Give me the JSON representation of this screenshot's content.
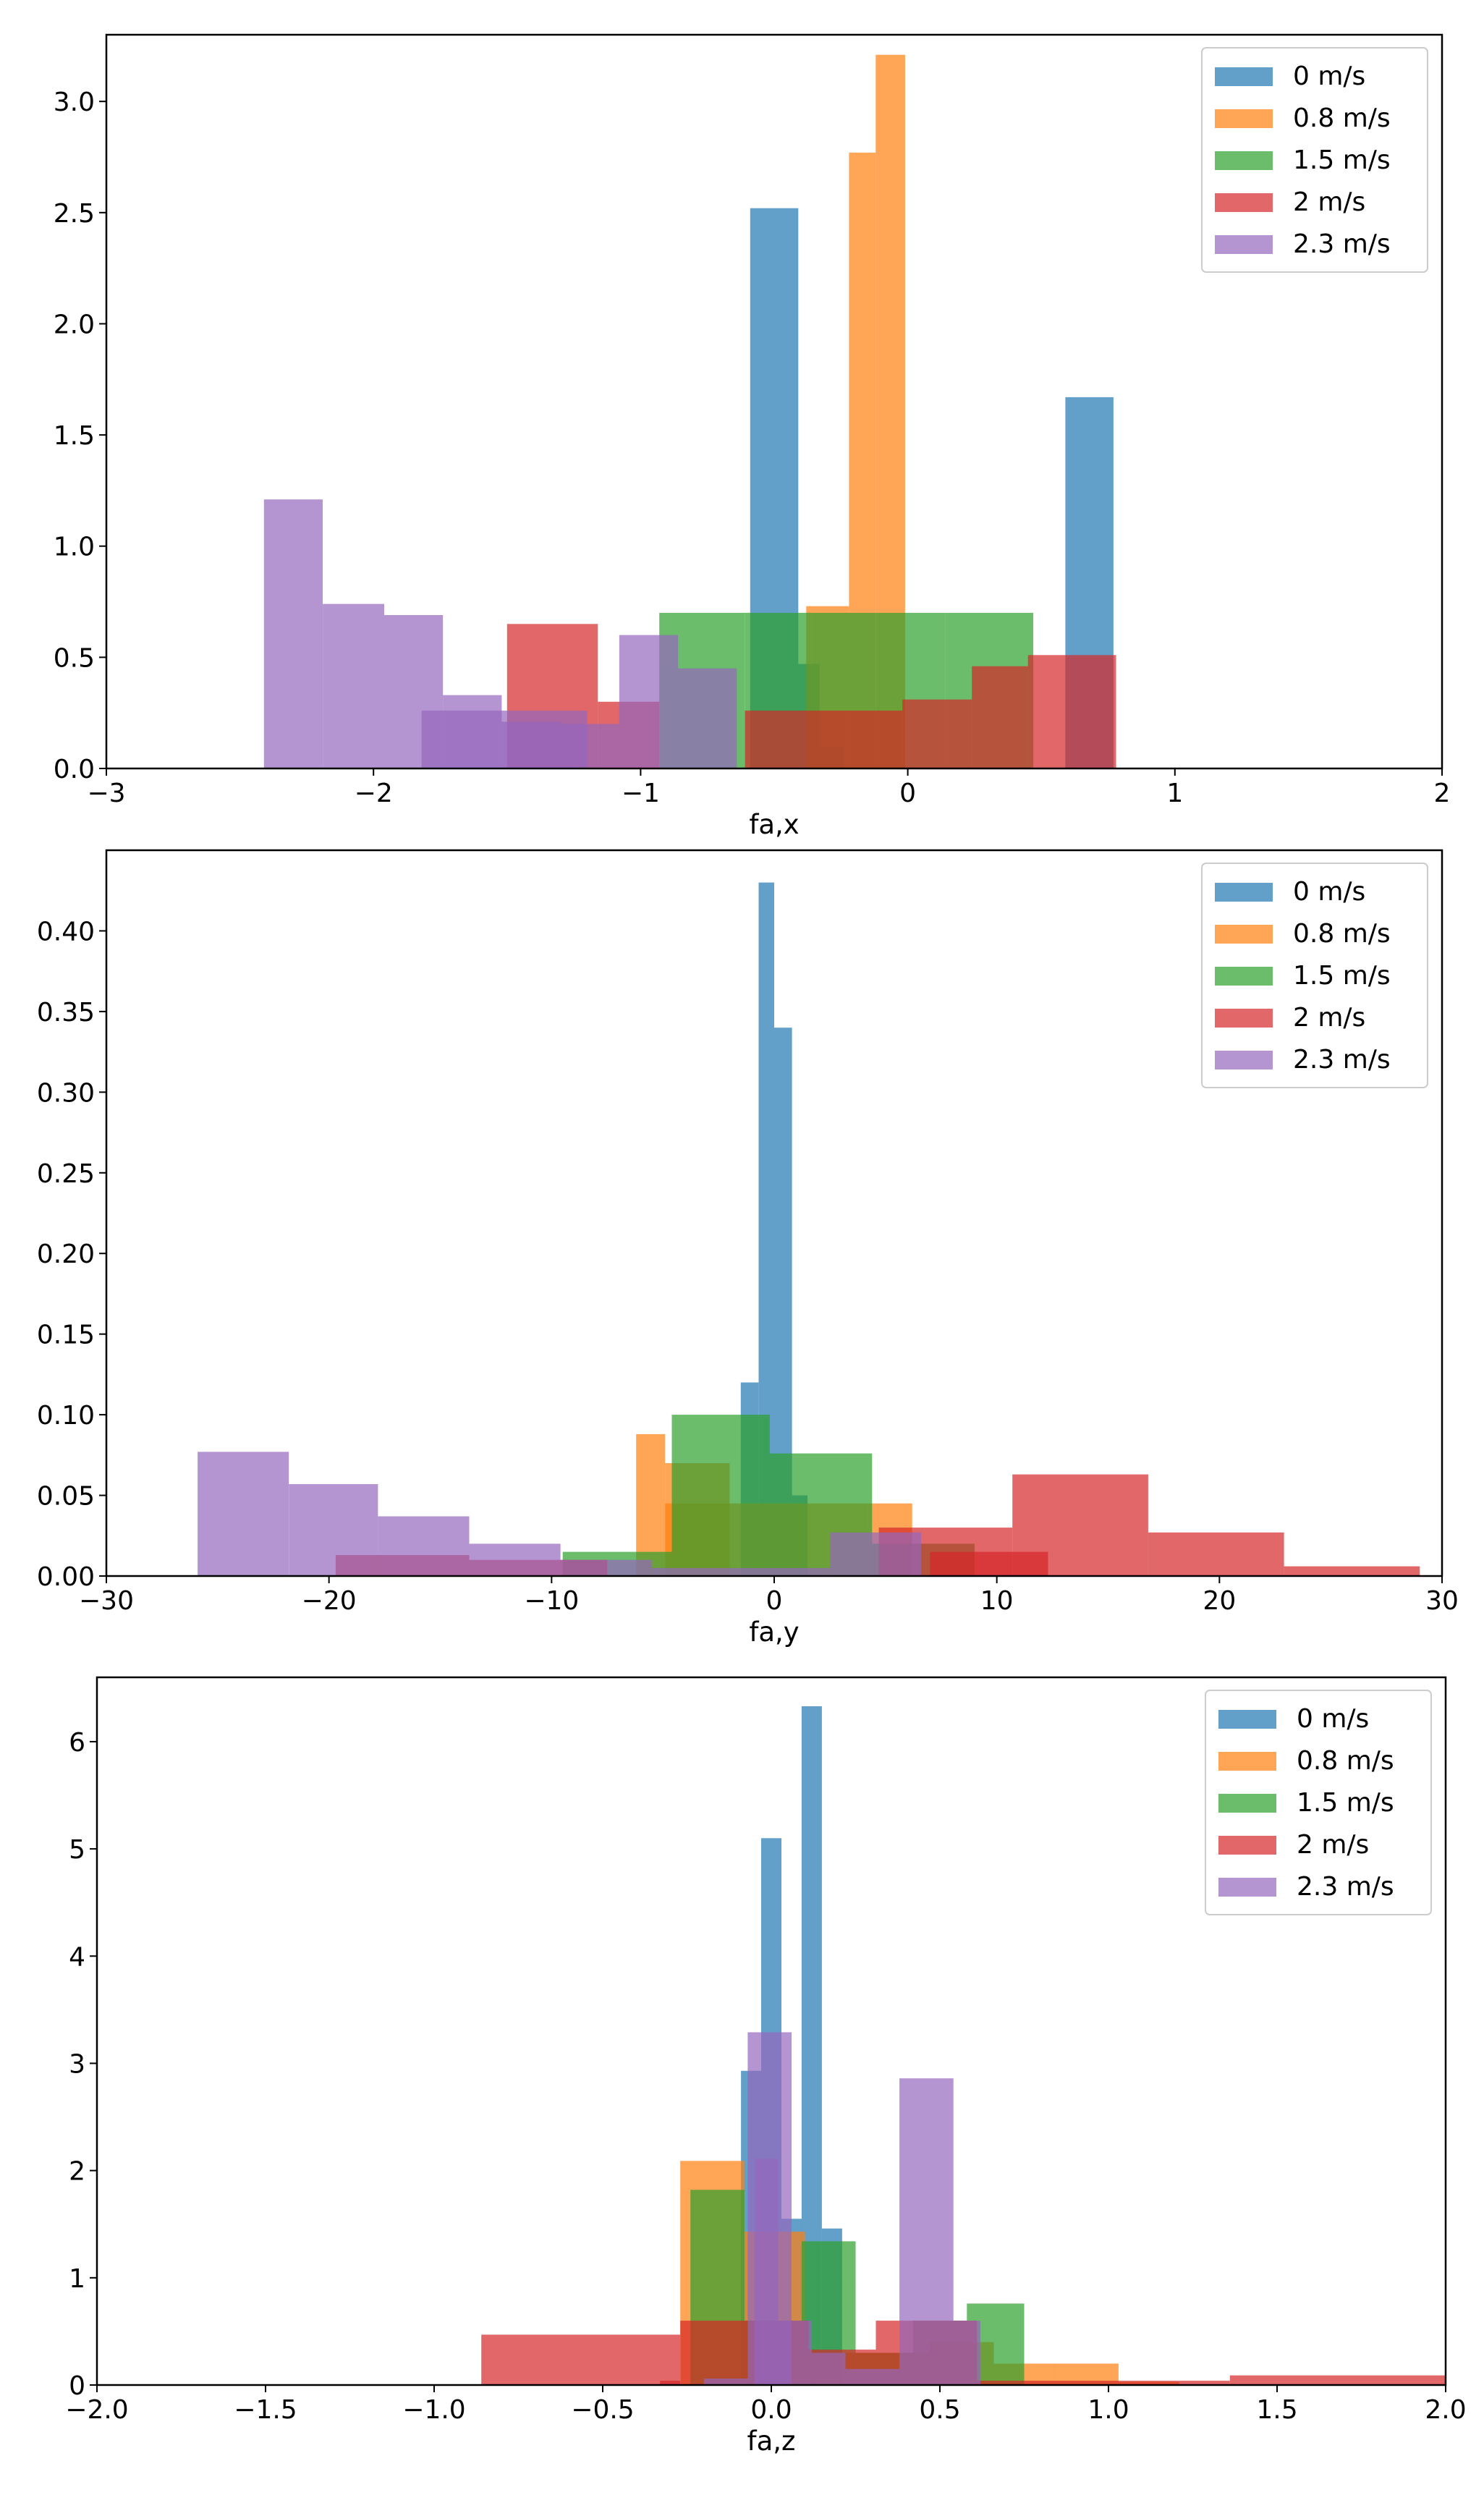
{
  "colors": {
    "series": [
      "#1f77b4",
      "#ff7f0e",
      "#2ca02c",
      "#d62728",
      "#9467bd"
    ]
  },
  "chart_data": [
    {
      "type": "bar",
      "subtype": "histogram",
      "title": "",
      "xlabel": "fa,x",
      "ylabel": "",
      "xlim": [
        -3,
        2
      ],
      "ylim": [
        0,
        3.3
      ],
      "xticks": [
        -3,
        -2,
        -1,
        0,
        1,
        2
      ],
      "xtick_labels": [
        "−3",
        "−2",
        "−1",
        "0",
        "1",
        "2"
      ],
      "yticks": [
        0,
        0.5,
        1.0,
        1.5,
        2.0,
        2.5,
        3.0
      ],
      "ytick_labels": [
        "0.0",
        "0.5",
        "1.0",
        "1.5",
        "2.0",
        "2.5",
        "3.0"
      ],
      "legend": [
        "0 m/s",
        "0.8 m/s",
        "1.5 m/s",
        "2 m/s",
        "2.3 m/s"
      ],
      "legend_position": "top-right",
      "series": [
        {
          "name": "0 m/s",
          "bins": [
            [
              -0.59,
              -0.41,
              2.52
            ],
            [
              -0.41,
              -0.33,
              0.47
            ],
            [
              -0.33,
              -0.24,
              0.1
            ],
            [
              0.59,
              0.77,
              1.67
            ]
          ]
        },
        {
          "name": "0.8 m/s",
          "bins": [
            [
              -0.38,
              -0.22,
              0.73
            ],
            [
              -0.22,
              -0.12,
              2.77
            ],
            [
              -0.12,
              -0.01,
              3.21
            ]
          ]
        },
        {
          "name": "1.5 m/s",
          "bins": [
            [
              -0.93,
              -0.61,
              0.7
            ],
            [
              -0.61,
              -0.36,
              0.7
            ],
            [
              -0.36,
              -0.12,
              0.7
            ],
            [
              -0.12,
              0.14,
              0.7
            ],
            [
              0.14,
              0.47,
              0.7
            ]
          ]
        },
        {
          "name": "2 m/s",
          "bins": [
            [
              -0.61,
              -0.29,
              0.26
            ],
            [
              -0.29,
              -0.02,
              0.26
            ],
            [
              -0.02,
              0.24,
              0.31
            ],
            [
              0.24,
              0.45,
              0.46
            ],
            [
              0.45,
              0.78,
              0.51
            ],
            [
              -1.5,
              -1.16,
              0.65
            ],
            [
              -1.16,
              -0.93,
              0.3
            ]
          ]
        },
        {
          "name": "2.3 m/s",
          "bins": [
            [
              -2.41,
              -2.19,
              1.21
            ],
            [
              -2.19,
              -1.96,
              0.74
            ],
            [
              -1.96,
              -1.74,
              0.69
            ],
            [
              -1.74,
              -1.52,
              0.33
            ],
            [
              -1.52,
              -1.3,
              0.21
            ],
            [
              -1.3,
              -1.08,
              0.2
            ],
            [
              -1.08,
              -0.86,
              0.6
            ],
            [
              -0.86,
              -0.64,
              0.45
            ],
            [
              -1.82,
              -1.2,
              0.26
            ]
          ]
        }
      ]
    },
    {
      "type": "bar",
      "subtype": "histogram",
      "title": "",
      "xlabel": "fa,y",
      "ylabel": "",
      "xlim": [
        -30,
        30
      ],
      "ylim": [
        0,
        0.45
      ],
      "xticks": [
        -30,
        -20,
        -10,
        0,
        10,
        20,
        30
      ],
      "xtick_labels": [
        "−30",
        "−20",
        "−10",
        "0",
        "10",
        "20",
        "30"
      ],
      "yticks": [
        0,
        0.05,
        0.1,
        0.15,
        0.2,
        0.25,
        0.3,
        0.35,
        0.4
      ],
      "ytick_labels": [
        "0.00",
        "0.05",
        "0.10",
        "0.15",
        "0.20",
        "0.25",
        "0.30",
        "0.35",
        "0.40"
      ],
      "legend": [
        "0 m/s",
        "0.8 m/s",
        "1.5 m/s",
        "2 m/s",
        "2.3 m/s"
      ],
      "legend_position": "top-right",
      "series": [
        {
          "name": "0 m/s",
          "bins": [
            [
              -1.5,
              -0.7,
              0.12
            ],
            [
              -0.7,
              0.0,
              0.43
            ],
            [
              0.0,
              0.8,
              0.34
            ],
            [
              0.8,
              1.5,
              0.05
            ]
          ]
        },
        {
          "name": "0.8 m/s",
          "bins": [
            [
              -6.2,
              -4.9,
              0.088
            ],
            [
              -4.9,
              4.2,
              0.045
            ],
            [
              4.2,
              6.2,
              0.045
            ],
            [
              -4.9,
              -2.0,
              0.07
            ]
          ]
        },
        {
          "name": "1.5 m/s",
          "bins": [
            [
              -9.5,
              -4.6,
              0.015
            ],
            [
              -4.6,
              -0.2,
              0.1
            ],
            [
              -0.2,
              4.4,
              0.076
            ],
            [
              4.4,
              9.0,
              0.02
            ]
          ]
        },
        {
          "name": "2 m/s",
          "bins": [
            [
              -19.7,
              -13.7,
              0.013
            ],
            [
              -13.7,
              -7.5,
              0.01
            ],
            [
              4.7,
              10.7,
              0.03
            ],
            [
              10.7,
              16.8,
              0.063
            ],
            [
              16.8,
              22.9,
              0.027
            ],
            [
              22.9,
              29.0,
              0.006
            ],
            [
              7.0,
              12.3,
              0.015
            ]
          ]
        },
        {
          "name": "2.3 m/s",
          "bins": [
            [
              -25.9,
              -21.8,
              0.077
            ],
            [
              -21.8,
              -17.8,
              0.057
            ],
            [
              -17.8,
              -13.7,
              0.037
            ],
            [
              -13.7,
              -9.6,
              0.02
            ],
            [
              -9.6,
              -5.5,
              0.01
            ],
            [
              -5.5,
              2.5,
              0.005
            ],
            [
              2.5,
              6.6,
              0.027
            ]
          ]
        }
      ]
    },
    {
      "type": "bar",
      "subtype": "histogram",
      "title": "",
      "xlabel": "fa,z",
      "ylabel": "",
      "xlim": [
        -2.0,
        2.0
      ],
      "ylim": [
        0,
        6.6
      ],
      "xticks": [
        -2.0,
        -1.5,
        -1.0,
        -0.5,
        0.0,
        0.5,
        1.0,
        1.5,
        2.0
      ],
      "xtick_labels": [
        "−2.0",
        "−1.5",
        "−1.0",
        "−0.5",
        "0.0",
        "0.5",
        "1.0",
        "1.5",
        "2.0"
      ],
      "yticks": [
        0,
        1,
        2,
        3,
        4,
        5,
        6
      ],
      "ytick_labels": [
        "0",
        "1",
        "2",
        "3",
        "4",
        "5",
        "6"
      ],
      "legend": [
        "0 m/s",
        "0.8 m/s",
        "1.5 m/s",
        "2 m/s",
        "2.3 m/s"
      ],
      "legend_position": "top-right",
      "series": [
        {
          "name": "0 m/s",
          "bins": [
            [
              -0.09,
              -0.03,
              2.93
            ],
            [
              -0.03,
              0.03,
              5.1
            ],
            [
              0.03,
              0.09,
              1.55
            ],
            [
              0.09,
              0.15,
              6.33
            ],
            [
              0.15,
              0.21,
              1.46
            ]
          ]
        },
        {
          "name": "0.8 m/s",
          "bins": [
            [
              -0.27,
              -0.08,
              2.09
            ],
            [
              -0.08,
              0.1,
              1.43
            ],
            [
              0.1,
              0.28,
              0.3
            ],
            [
              0.28,
              0.47,
              0.3
            ],
            [
              0.47,
              0.66,
              0.4
            ],
            [
              0.66,
              0.84,
              0.2
            ],
            [
              0.84,
              1.03,
              0.2
            ],
            [
              1.03,
              1.21,
              0.03
            ]
          ]
        },
        {
          "name": "1.5 m/s",
          "bins": [
            [
              -0.24,
              -0.08,
              1.82
            ],
            [
              -0.08,
              0.09,
              0.6
            ],
            [
              0.09,
              0.25,
              1.34
            ],
            [
              0.25,
              0.42,
              0.3
            ],
            [
              0.42,
              0.58,
              0.6
            ],
            [
              0.58,
              0.75,
              0.76
            ]
          ]
        },
        {
          "name": "2 m/s",
          "bins": [
            [
              -0.86,
              -0.27,
              0.47
            ],
            [
              -0.27,
              0.11,
              0.6
            ],
            [
              0.11,
              0.31,
              0.33
            ],
            [
              0.31,
              0.61,
              0.6
            ],
            [
              0.61,
              1.36,
              0.04
            ],
            [
              1.36,
              2.0,
              0.09
            ],
            [
              -0.33,
              -0.27,
              0.04
            ]
          ]
        },
        {
          "name": "2.3 m/s",
          "bins": [
            [
              -0.07,
              0.06,
              3.29
            ],
            [
              -0.05,
              0.02,
              2.11
            ],
            [
              0.02,
              0.12,
              0.6
            ],
            [
              0.12,
              0.22,
              0.3
            ],
            [
              0.22,
              0.38,
              0.15
            ],
            [
              0.38,
              0.54,
              2.86
            ],
            [
              0.54,
              0.62,
              0.6
            ],
            [
              -0.2,
              -0.07,
              0.06
            ]
          ]
        }
      ]
    }
  ]
}
